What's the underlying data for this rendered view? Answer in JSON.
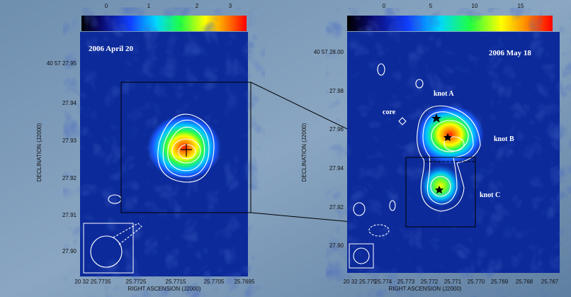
{
  "panels": [
    {
      "title": "2006 April 20",
      "colorbar_ticks": [
        "0",
        "1",
        "2",
        "3"
      ],
      "yticks": [
        "40 57 27.95",
        "27.94",
        "27.93",
        "27.92",
        "27.91",
        "27.90"
      ],
      "xticks": [
        "20 32 25.7735",
        "25.7725",
        "25.7715",
        "25.7705",
        "25.7695"
      ],
      "xlabel": "RIGHT ASCENSION (J2000)",
      "ylabel": "DECLINATION (J2000)"
    },
    {
      "title": "2006 May 18",
      "colorbar_ticks": [
        "0",
        "5",
        "10",
        "15"
      ],
      "yticks": [
        "40 57 28.00",
        "27.98",
        "27.96",
        "27.94",
        "27.92",
        "27.90"
      ],
      "xticks": [
        "20 32 25.775",
        "25.774",
        "25.773",
        "25.772",
        "25.771",
        "25.770",
        "25.769",
        "25.768",
        "25.767"
      ],
      "xlabel": "RIGHT ASCENSION (J2000)",
      "ylabel": "DECLINATION (J2000)",
      "annotations": [
        "knot A",
        "knot B",
        "knot C",
        "core"
      ]
    }
  ]
}
